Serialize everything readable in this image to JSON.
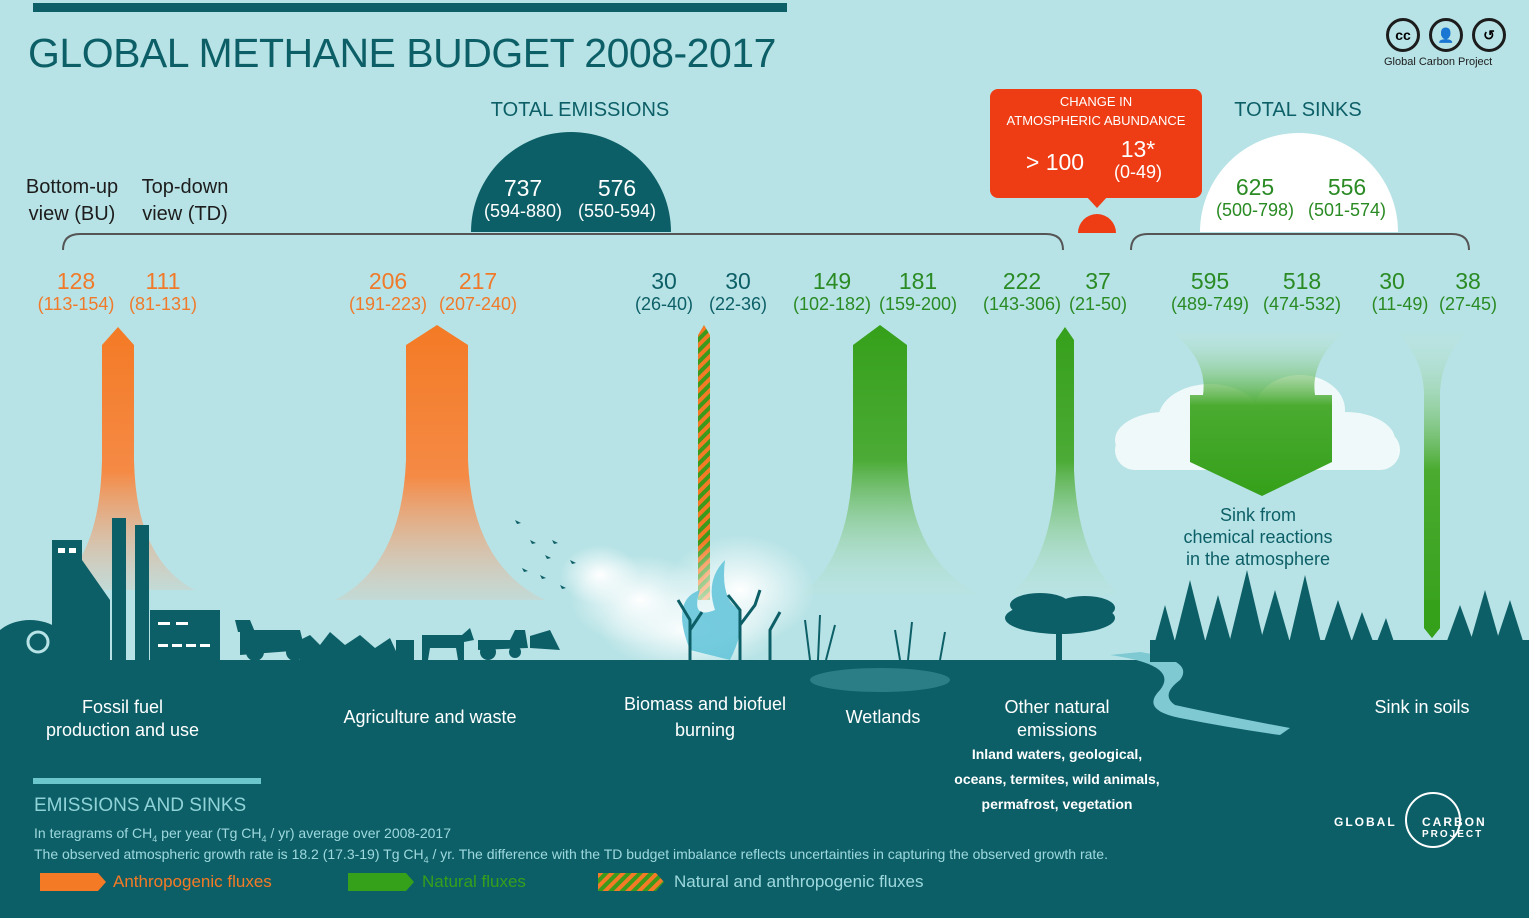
{
  "title": "GLOBAL METHANE BUDGET 2008-2017",
  "logo": {
    "icons": [
      "cc-icon",
      "by-icon",
      "sa-icon"
    ],
    "caption": "Global Carbon Project"
  },
  "views": {
    "bu": "Bottom-up view (BU)",
    "bu_line1": "Bottom-up",
    "bu_line2": "view (BU)",
    "td_line1": "Top-down",
    "td_line2": "view  (TD)"
  },
  "total_emissions": {
    "label": "TOTAL EMISSIONS",
    "bu": "737",
    "bu_range": "(594-880)",
    "td": "576",
    "td_range": "(550-594)"
  },
  "atmosphere": {
    "label_line1": "CHANGE IN",
    "label_line2": "ATMOSPHERIC ABUNDANCE",
    "bu": "> 100",
    "td": "13*",
    "td_range": "(0-49)"
  },
  "total_sinks": {
    "label": "TOTAL SINKS",
    "bu": "625",
    "bu_range": "(500-798)",
    "td": "556",
    "td_range": "(501-574)"
  },
  "fluxes": [
    {
      "id": "fossil",
      "bu": "128",
      "bu_range": "(113-154)",
      "td": "111",
      "td_range": "(81-131)",
      "kind": "anthropogenic",
      "label_line1": "Fossil fuel",
      "label_line2": "production and use"
    },
    {
      "id": "agri",
      "bu": "206",
      "bu_range": "(191-223)",
      "td": "217",
      "td_range": "(207-240)",
      "kind": "anthropogenic",
      "label_line1": "Agriculture and waste",
      "label_line2": ""
    },
    {
      "id": "biomass",
      "bu": "30",
      "bu_range": "(26-40)",
      "td": "30",
      "td_range": "(22-36)",
      "kind": "mixed",
      "label_line1": "Biomass and biofuel",
      "label_line2": "burning"
    },
    {
      "id": "wetlands",
      "bu": "149",
      "bu_range": "(102-182)",
      "td": "181",
      "td_range": "(159-200)",
      "kind": "natural",
      "label_line1": "Wetlands",
      "label_line2": ""
    },
    {
      "id": "other",
      "bu": "222",
      "bu_range": "(143-306)",
      "td": "37",
      "td_range": "(21-50)",
      "kind": "natural",
      "label_line1": "Other natural",
      "label_line2": "emissions",
      "detail_line1": "Inland waters, geological,",
      "detail_line2": "oceans, termites, wild animals,",
      "detail_line3": "permafrost, vegetation"
    },
    {
      "id": "chem",
      "bu": "595",
      "bu_range": "(489-749)",
      "td": "518",
      "td_range": "(474-532)",
      "kind": "natural",
      "label_line1": "Sink from",
      "label_line2": "chemical reactions",
      "label_line3": "in the atmosphere"
    },
    {
      "id": "soils",
      "bu": "30",
      "bu_range": "(11-49)",
      "td": "38",
      "td_range": "(27-45)",
      "kind": "natural",
      "label_line1": "Sink in soils",
      "label_line2": ""
    }
  ],
  "legend": {
    "heading": "EMISSIONS AND SINKS",
    "units_pre": "In teragrams of CH",
    "units_sub": "4",
    "units_mid": " per year (Tg CH",
    "units_sub2": "4",
    "units_post": " / yr) average over 2008-2017",
    "note_pre": "The observed atmospheric growth rate is 18.2 (17.3-19) Tg CH",
    "note_sub": "4",
    "note_post": " / yr. The difference with the TD budget imbalance reflects uncertainties in capturing the observed growth rate.",
    "anthropogenic": "Anthropogenic fluxes",
    "natural": "Natural fluxes",
    "mixed": "Natural and anthropogenic  fluxes"
  },
  "gcp_logo": {
    "left": "GLOBAL",
    "right_top": "CARBON",
    "right_bottom": "PROJECT"
  },
  "colors": {
    "orange": "#f47a25",
    "green": "#3a9a1c",
    "teal": "#0d5f67",
    "sky": "#b7e3e6",
    "red": "#ee3d14"
  }
}
